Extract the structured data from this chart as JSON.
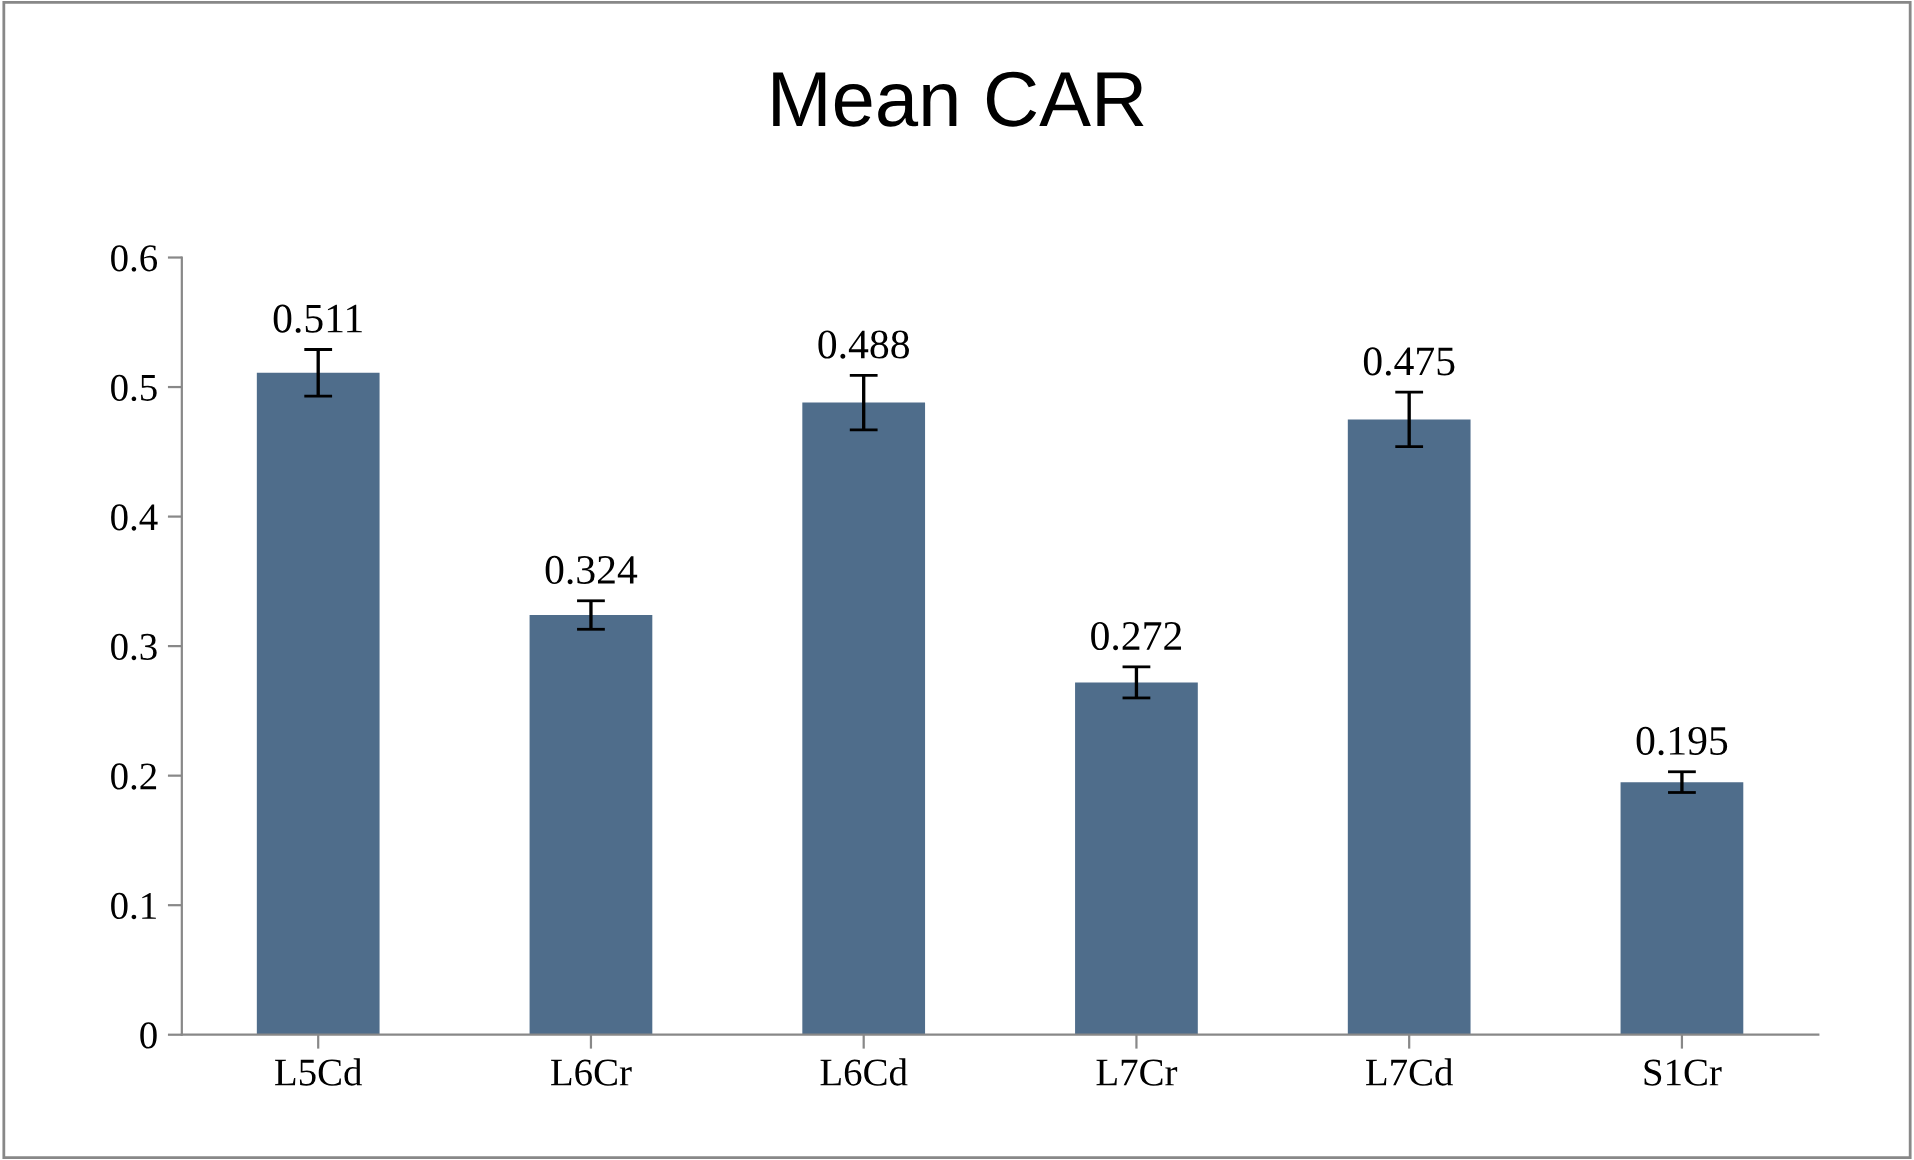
{
  "chart_data": {
    "type": "bar",
    "title": "Mean CAR",
    "categories": [
      "L5Cd",
      "L6Cr",
      "L6Cd",
      "L7Cr",
      "L7Cd",
      "S1Cr"
    ],
    "values": [
      0.511,
      0.324,
      0.488,
      0.272,
      0.475,
      0.195
    ],
    "errors": [
      0.018,
      0.011,
      0.021,
      0.012,
      0.021,
      0.008
    ],
    "color": "#4f6d8b",
    "ylim": [
      0,
      0.6
    ],
    "yticks": [
      {
        "value": 0,
        "label": "0"
      },
      0.1,
      0.2,
      0.3,
      0.4,
      0.5,
      0.6
    ],
    "data_labels": true,
    "grid": false,
    "legend": false
  }
}
